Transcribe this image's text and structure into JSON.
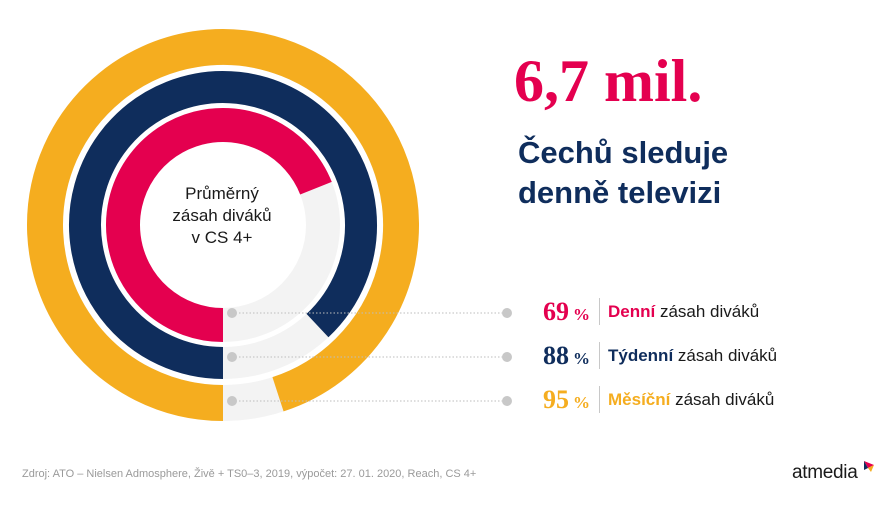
{
  "chart_data": {
    "type": "donut",
    "center_label": [
      "Průměrný",
      "zásah diváků",
      "v CS 4+"
    ],
    "series": [
      {
        "name": "Denní",
        "value": 69,
        "color": "#e4004f"
      },
      {
        "name": "Týdenní",
        "value": 88,
        "color": "#0f2d5c"
      },
      {
        "name": "Měsíční",
        "value": 95,
        "color": "#f5ad1f"
      }
    ],
    "remainder_color": "#f3f3f3"
  },
  "headline": {
    "big": "6,7 mil.",
    "line1": "Čechů sleduje",
    "line2": "denně televizi"
  },
  "legend": [
    {
      "pct": "69",
      "unit": "%",
      "keyword": "Denní",
      "rest": " zásah diváků",
      "color": "#e4004f"
    },
    {
      "pct": "88",
      "unit": "%",
      "keyword": "Týdenní",
      "rest": " zásah diváků",
      "color": "#0f2d5c"
    },
    {
      "pct": "95",
      "unit": "%",
      "keyword": "Měsíční",
      "rest": " zásah diváků",
      "color": "#f5ad1f"
    }
  ],
  "source": "Zdroj: ATO  – Nielsen Admosphere, Živě + TS0–3, 2019, výpočet:  27. 01. 2020,  Reach, CS 4+",
  "logo": {
    "text": "atmedia",
    "icon": "atmedia-logo-mark"
  },
  "colors": {
    "marker": "#c8c8c8",
    "leader": "#bdbdbd",
    "separator": "#c8c8c8"
  }
}
